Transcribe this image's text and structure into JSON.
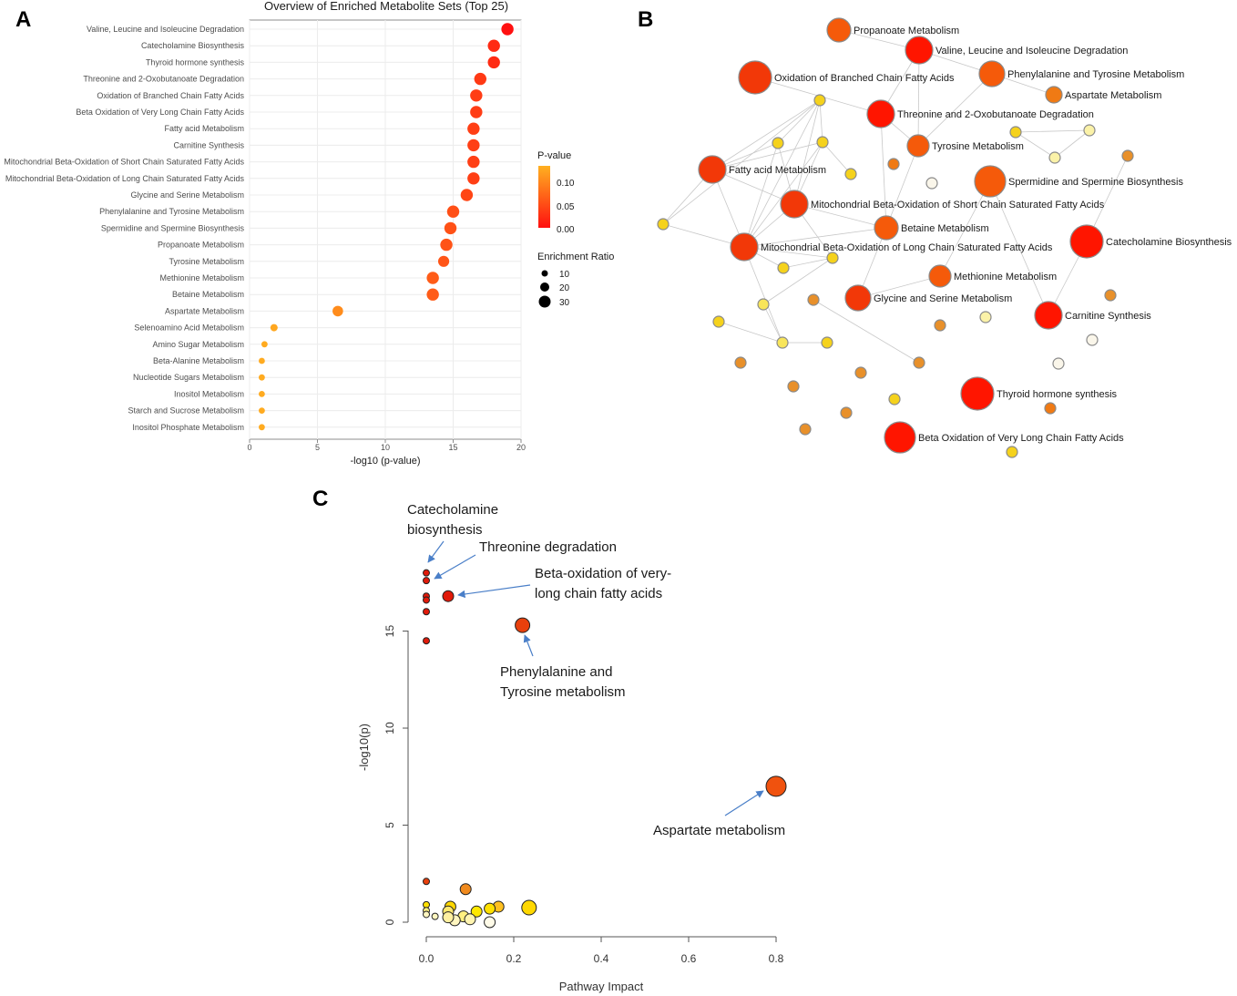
{
  "panels": {
    "a": "A",
    "b": "B",
    "c": "C"
  },
  "chart_data": [
    {
      "type": "scatter",
      "panel": "A",
      "title": "Overview of Enriched Metabolite Sets (Top 25)",
      "xlabel": "-log10 (p-value)",
      "ylabel": "",
      "xlim": [
        0,
        20
      ],
      "xticks": [
        0,
        5,
        10,
        15,
        20
      ],
      "grid": true,
      "categories": [
        "Valine, Leucine and Isoleucine Degradation",
        "Catecholamine Biosynthesis",
        "Thyroid hormone synthesis",
        "Threonine and 2-Oxobutanoate Degradation",
        "Oxidation of Branched Chain Fatty Acids",
        "Beta Oxidation of Very Long Chain Fatty Acids",
        "Fatty acid Metabolism",
        "Carnitine Synthesis",
        "Mitochondrial Beta-Oxidation of Short Chain Saturated Fatty Acids",
        "Mitochondrial Beta-Oxidation of Long Chain Saturated Fatty Acids",
        "Glycine and Serine Metabolism",
        "Phenylalanine and Tyrosine Metabolism",
        "Spermidine and Spermine Biosynthesis",
        "Propanoate Metabolism",
        "Tyrosine Metabolism",
        "Methionine Metabolism",
        "Betaine Metabolism",
        "Aspartate Metabolism",
        "Selenoamino Acid Metabolism",
        "Amino Sugar Metabolism",
        "Beta-Alanine Metabolism",
        "Nucleotide Sugars Metabolism",
        "Inositol Metabolism",
        "Starch and Sucrose Metabolism",
        "Inositol Phosphate Metabolism"
      ],
      "neg_log10_p": [
        19.0,
        18.0,
        18.0,
        17.0,
        16.7,
        16.7,
        16.5,
        16.5,
        16.5,
        16.5,
        16.0,
        15.0,
        14.8,
        14.5,
        14.3,
        13.5,
        13.5,
        6.5,
        1.8,
        1.1,
        0.9,
        0.9,
        0.9,
        0.9,
        0.9
      ],
      "enrichment_ratio": [
        14,
        14,
        14,
        14,
        14,
        14,
        14,
        14,
        14,
        14,
        14,
        14,
        14,
        14,
        12,
        14,
        14,
        11,
        5,
        3,
        3,
        3,
        3,
        3,
        3
      ],
      "legend": {
        "pvalue_title": "P-value",
        "pvalue_ticks": [
          "0.10",
          "0.05",
          "0.00"
        ],
        "color_high": "#ffb020",
        "color_low": "#ff1010",
        "size_title": "Enrichment Ratio",
        "size_ticks": [
          "10",
          "20",
          "30"
        ]
      }
    },
    {
      "type": "network",
      "panel": "B",
      "labeled_nodes": [
        "Propanoate Metabolism",
        "Valine, Leucine and Isoleucine Degradation",
        "Oxidation of Branched Chain Fatty Acids",
        "Phenylalanine and Tyrosine Metabolism",
        "Aspartate Metabolism",
        "Threonine and 2-Oxobutanoate Degradation",
        "Tyrosine Metabolism",
        "Fatty acid Metabolism",
        "Spermidine and Spermine Biosynthesis",
        "Mitochondrial Beta-Oxidation of Short Chain Saturated Fatty Acids",
        "Betaine Metabolism",
        "Catecholamine Biosynthesis",
        "Mitochondrial Beta-Oxidation of Long Chain Saturated Fatty Acids",
        "Methionine Metabolism",
        "Glycine and Serine Metabolism",
        "Carnitine Synthesis",
        "Thyroid hormone synthesis",
        "Beta Oxidation of Very Long Chain Fatty Acids"
      ]
    },
    {
      "type": "scatter",
      "panel": "C",
      "xlabel": "Pathway Impact",
      "ylabel": "-log10(p)",
      "xlim": [
        0,
        0.8
      ],
      "ylim": [
        0,
        18.5
      ],
      "xticks": [
        "0.0",
        "0.2",
        "0.4",
        "0.6",
        "0.8"
      ],
      "yticks": [
        "0",
        "5",
        "10",
        "15"
      ],
      "points": [
        {
          "x": 0.0,
          "y": 18.0,
          "size": "small",
          "color": "#e11a0a"
        },
        {
          "x": 0.0,
          "y": 17.6,
          "size": "small",
          "color": "#e11a0a"
        },
        {
          "x": 0.0,
          "y": 16.8,
          "size": "small",
          "color": "#e11a0a"
        },
        {
          "x": 0.0,
          "y": 16.6,
          "size": "small",
          "color": "#e11a0a"
        },
        {
          "x": 0.0,
          "y": 16.0,
          "size": "small",
          "color": "#e11a0a"
        },
        {
          "x": 0.0,
          "y": 14.5,
          "size": "small",
          "color": "#e11a0a"
        },
        {
          "x": 0.05,
          "y": 16.8,
          "size": "medium",
          "color": "#e11a0a"
        },
        {
          "x": 0.22,
          "y": 15.3,
          "size": "large",
          "color": "#e8400c"
        },
        {
          "x": 0.8,
          "y": 7.0,
          "size": "xlarge",
          "color": "#f0520e"
        },
        {
          "x": 0.0,
          "y": 2.1,
          "size": "small",
          "color": "#e8400c"
        },
        {
          "x": 0.09,
          "y": 1.7,
          "size": "medium",
          "color": "#f08a1e"
        },
        {
          "x": 0.235,
          "y": 0.75,
          "size": "large",
          "color": "#ffd800"
        },
        {
          "x": 0.165,
          "y": 0.8,
          "size": "medium",
          "color": "#ffc020"
        },
        {
          "x": 0.145,
          "y": 0.7,
          "size": "medium",
          "color": "#ffe000"
        },
        {
          "x": 0.115,
          "y": 0.55,
          "size": "medium",
          "color": "#ffe800"
        },
        {
          "x": 0.055,
          "y": 0.8,
          "size": "medium",
          "color": "#ffd800"
        },
        {
          "x": 0.05,
          "y": 0.55,
          "size": "medium",
          "color": "#ffe870"
        },
        {
          "x": 0.085,
          "y": 0.3,
          "size": "medium",
          "color": "#fff080"
        },
        {
          "x": 0.1,
          "y": 0.15,
          "size": "medium",
          "color": "#fff4b0"
        },
        {
          "x": 0.065,
          "y": 0.1,
          "size": "medium",
          "color": "#fff6c0"
        },
        {
          "x": 0.145,
          "y": 0.0,
          "size": "medium",
          "color": "#fffbe8"
        },
        {
          "x": 0.05,
          "y": 0.25,
          "size": "medium",
          "color": "#fff0a0"
        },
        {
          "x": 0.02,
          "y": 0.3,
          "size": "small",
          "color": "#fff6c0"
        },
        {
          "x": 0.0,
          "y": 0.9,
          "size": "small",
          "color": "#ffe000"
        },
        {
          "x": 0.0,
          "y": 0.6,
          "size": "small",
          "color": "#fff080"
        },
        {
          "x": 0.0,
          "y": 0.4,
          "size": "small",
          "color": "#fff6c0"
        }
      ],
      "annotations": [
        {
          "lines": [
            "Catecholamine",
            "biosynthesis"
          ]
        },
        {
          "lines": [
            "Threonine degradation"
          ]
        },
        {
          "lines": [
            "Beta-oxidation of very-",
            "long chain fatty acids"
          ]
        },
        {
          "lines": [
            "Phenylalanine and",
            "Tyrosine metabolism"
          ]
        },
        {
          "lines": [
            "Aspartate metabolism"
          ]
        }
      ]
    }
  ]
}
